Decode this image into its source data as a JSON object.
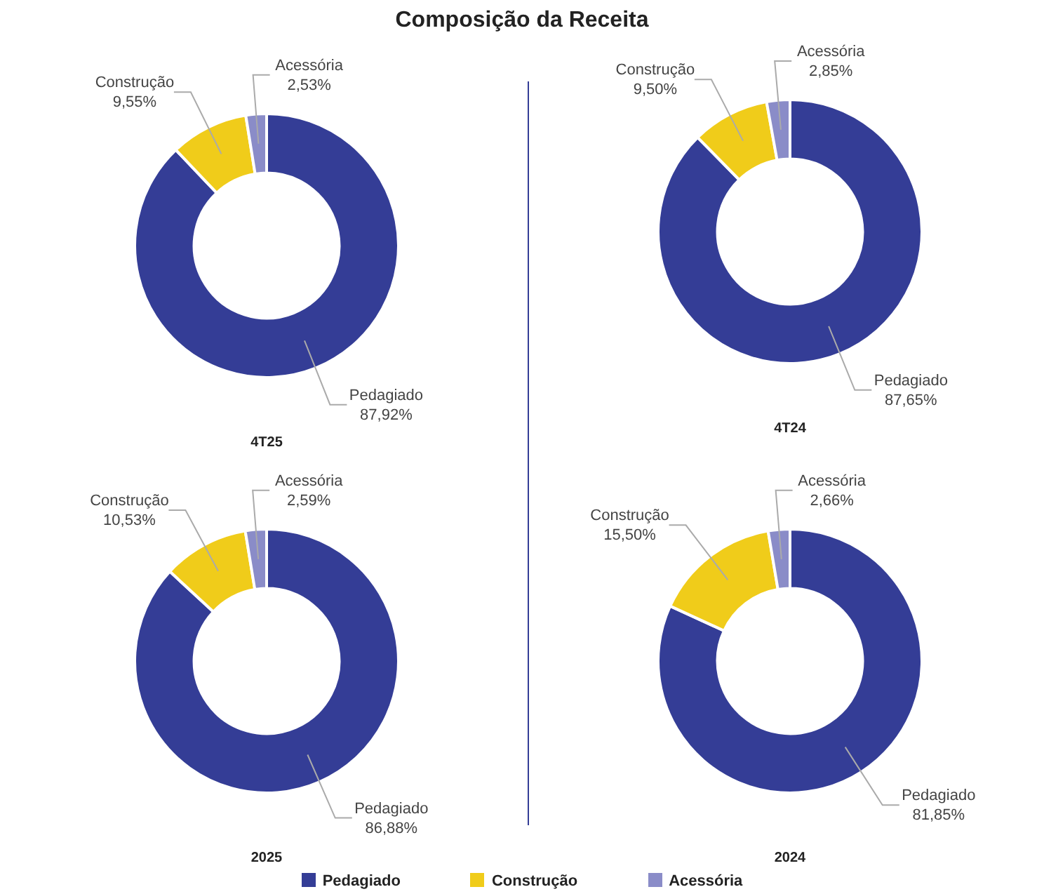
{
  "chart_data": [
    {
      "type": "donut",
      "title": "Composição da Receita",
      "xlabel": "4T25",
      "categories": [
        "Pedagiado",
        "Construção",
        "Acessória"
      ],
      "values": [
        87.92,
        9.55,
        2.53
      ],
      "value_labels": [
        "87,92%",
        "9,55%",
        "2,53%"
      ],
      "colors": [
        "#343d96",
        "#f0cc1a",
        "#8a8cc8"
      ]
    },
    {
      "type": "donut",
      "xlabel": "4T24",
      "categories": [
        "Pedagiado",
        "Construção",
        "Acessória"
      ],
      "values": [
        87.65,
        9.5,
        2.85
      ],
      "value_labels": [
        "87,65%",
        "9,50%",
        "2,85%"
      ],
      "colors": [
        "#343d96",
        "#f0cc1a",
        "#8a8cc8"
      ]
    },
    {
      "type": "donut",
      "xlabel": "2025",
      "categories": [
        "Pedagiado",
        "Construção",
        "Acessória"
      ],
      "values": [
        86.88,
        10.53,
        2.59
      ],
      "value_labels": [
        "86,88%",
        "10,53%",
        "2,59%"
      ],
      "colors": [
        "#343d96",
        "#f0cc1a",
        "#8a8cc8"
      ]
    },
    {
      "type": "donut",
      "xlabel": "2024",
      "categories": [
        "Pedagiado",
        "Construção",
        "Acessória"
      ],
      "values": [
        81.85,
        15.5,
        2.66
      ],
      "value_labels": [
        "81,85%",
        "15,50%",
        "2,66%"
      ],
      "colors": [
        "#343d96",
        "#f0cc1a",
        "#8a8cc8"
      ],
      "legend": "bottom"
    }
  ]
}
